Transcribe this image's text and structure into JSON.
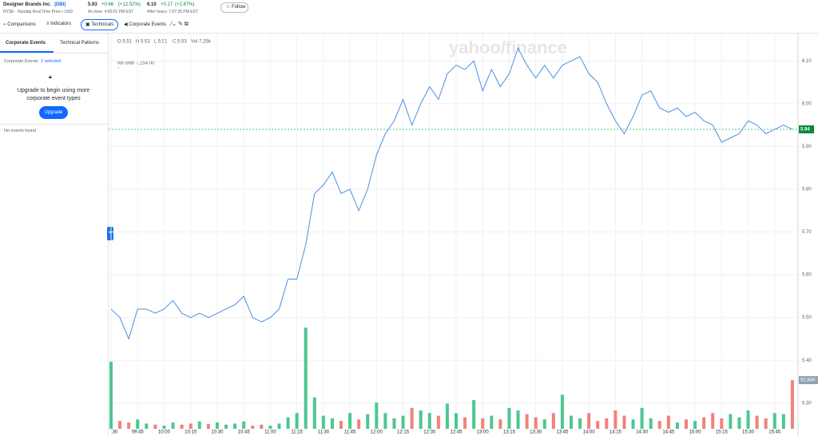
{
  "header": {
    "name": "Designer Brands Inc.",
    "ticker": "(DBI)",
    "exchange": "NYSE - Nasdaq Real Time Price • USD",
    "price": "5.93",
    "change": "+0.66",
    "change_pct": "(+12.52%)",
    "close_note": "At close: 4:00:02 PM EST",
    "ah_price": "6.10",
    "ah_change": "+0.17",
    "ah_change_pct": "(+2.87%)",
    "ah_note": "After hours: 7:07:25 PM EST",
    "follow": "Follow"
  },
  "toolbar": [
    "Comparisons",
    "Indicators",
    "Technicals",
    "Corporate Events"
  ],
  "sidebar": {
    "tabs": [
      "Corporate Events",
      "Technical Patterns"
    ],
    "filter_label": "Corporate Events",
    "filter_value": "2 selected",
    "upgrade_text": "Upgrade to begin using more corporate event types",
    "upgrade_button": "Upgrade",
    "empty": "No events found"
  },
  "chart_data": {
    "type": "line",
    "watermark": "yahoo/finance",
    "ohlc": [
      "O 5.51",
      "H 5.53",
      "L 5.51",
      "C 5.53",
      "Vol 7.25k"
    ],
    "volume_legend": "vol undr  7,254.00",
    "color": "#4a90e2",
    "up_color": "#4cc790",
    "down_color": "#f0827a",
    "x": [
      "09:30",
      "09:35",
      "09:40",
      "09:45",
      "09:50",
      "09:55",
      "10:00",
      "10:05",
      "10:10",
      "10:15",
      "10:20",
      "10:25",
      "10:30",
      "10:35",
      "10:40",
      "10:45",
      "10:50",
      "10:55",
      "11:00",
      "11:05",
      "11:10",
      "11:15",
      "11:20",
      "11:25",
      "11:30",
      "11:35",
      "11:40",
      "11:45",
      "11:50",
      "11:55",
      "12:00",
      "12:05",
      "12:10",
      "12:15",
      "12:20",
      "12:25",
      "12:30",
      "12:35",
      "12:40",
      "12:45",
      "12:50",
      "12:55",
      "13:00",
      "13:05",
      "13:10",
      "13:15",
      "13:20",
      "13:25",
      "13:30",
      "13:35",
      "13:40",
      "13:45",
      "13:50",
      "13:55",
      "14:00",
      "14:05",
      "14:10",
      "14:15",
      "14:20",
      "14:25",
      "14:30",
      "14:35",
      "14:40",
      "14:45",
      "14:50",
      "14:55",
      "15:00",
      "15:05",
      "15:10",
      "15:15",
      "15:20",
      "15:25",
      "15:30",
      "15:35",
      "15:40",
      "15:45",
      "15:50",
      "15:55"
    ],
    "values": [
      5.52,
      5.5,
      5.45,
      5.52,
      5.52,
      5.51,
      5.52,
      5.54,
      5.51,
      5.5,
      5.51,
      5.5,
      5.51,
      5.52,
      5.53,
      5.55,
      5.5,
      5.49,
      5.5,
      5.52,
      5.59,
      5.59,
      5.67,
      5.79,
      5.81,
      5.84,
      5.79,
      5.8,
      5.75,
      5.8,
      5.88,
      5.93,
      5.96,
      6.01,
      5.95,
      6.0,
      6.04,
      6.01,
      6.07,
      6.09,
      6.08,
      6.1,
      6.03,
      6.08,
      6.04,
      6.07,
      6.13,
      6.09,
      6.06,
      6.09,
      6.06,
      6.09,
      6.1,
      6.11,
      6.07,
      6.05,
      6.0,
      5.96,
      5.93,
      5.97,
      6.02,
      6.03,
      5.99,
      5.98,
      5.99,
      5.97,
      5.98,
      5.96,
      5.95,
      5.91,
      5.92,
      5.93,
      5.96,
      5.95,
      5.93,
      5.94,
      5.95,
      5.94
    ],
    "volume": [
      128,
      15,
      12,
      18,
      10,
      8,
      6,
      12,
      8,
      10,
      14,
      9,
      12,
      8,
      10,
      14,
      6,
      8,
      6,
      10,
      22,
      30,
      193,
      60,
      25,
      20,
      15,
      30,
      18,
      28,
      50,
      30,
      20,
      25,
      40,
      35,
      30,
      25,
      48,
      30,
      22,
      55,
      20,
      25,
      18,
      40,
      35,
      28,
      22,
      18,
      30,
      65,
      25,
      20,
      30,
      15,
      20,
      35,
      25,
      18,
      40,
      20,
      15,
      25,
      12,
      18,
      15,
      22,
      30,
      20,
      28,
      22,
      35,
      25,
      20,
      30,
      28,
      92.84
    ],
    "volume_last_label": "92.84K",
    "last_price": 5.94,
    "xlim": [
      "09:30",
      "16:00"
    ],
    "xticks": [
      {
        "value": "09:30",
        "label": ":30"
      },
      "09:45",
      "10:00",
      "10:15",
      "10:30",
      "10:45",
      "11:00",
      "11:15",
      "11:30",
      "11:45",
      "12:00",
      "12:15",
      "12:30",
      "12:45",
      "13:00",
      "13:15",
      "13:30",
      "13:45",
      "14:00",
      "14:15",
      "14:30",
      "14:45",
      "15:00",
      "15:15",
      "15:30",
      "15:45"
    ],
    "ylim": [
      5.223,
      6.166
    ],
    "yticks": [
      {
        "value": 5.3,
        "label": "5.30"
      },
      {
        "value": 5.4,
        "label": "5.40"
      },
      {
        "value": 5.5,
        "label": "5.50"
      },
      {
        "value": 5.6,
        "label": "5.60"
      },
      {
        "value": 5.7,
        "label": "5.70"
      },
      {
        "value": 5.8,
        "label": "5.80"
      },
      {
        "value": 5.9,
        "label": "5.90"
      },
      {
        "value": 6.0,
        "label": "6.00"
      },
      {
        "value": 6.1,
        "label": "6.10"
      }
    ],
    "vlim": [
      0,
      230
    ],
    "grid": true
  }
}
